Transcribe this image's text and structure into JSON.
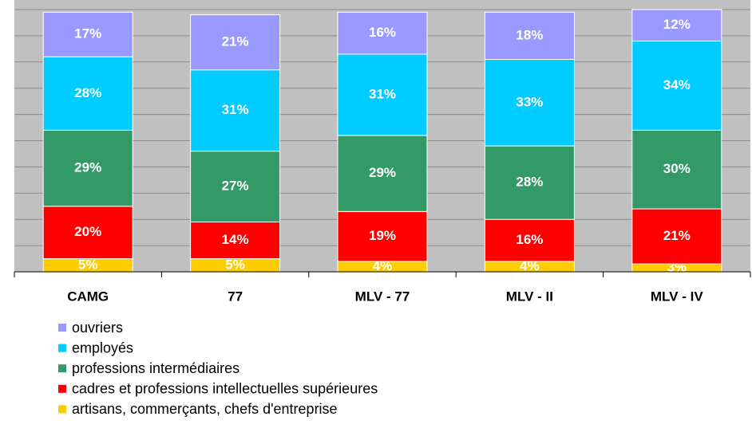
{
  "chart_data": {
    "type": "stacked_bar",
    "categories": [
      "CAMG",
      "77",
      "MLV - 77",
      "MLV - II",
      "MLV - IV"
    ],
    "ylim": [
      0,
      100
    ],
    "yticks": [
      0,
      10,
      20,
      30,
      40,
      50,
      60,
      70,
      80,
      90,
      100
    ],
    "grid": true,
    "series": [
      {
        "name": "ouvriers",
        "color": "#9999ff",
        "values": [
          17,
          21,
          16,
          18,
          12
        ],
        "value_labels": [
          "17%",
          "21%",
          "16%",
          "18%",
          "12%"
        ]
      },
      {
        "name": "employés",
        "color": "#00ccff",
        "values": [
          28,
          31,
          31,
          33,
          34
        ],
        "value_labels": [
          "28%",
          "31%",
          "31%",
          "33%",
          "34%"
        ]
      },
      {
        "name": "professions intermédiaires",
        "color": "#339966",
        "values": [
          29,
          27,
          29,
          28,
          30
        ],
        "value_labels": [
          "29%",
          "27%",
          "29%",
          "28%",
          "30%"
        ]
      },
      {
        "name": "cadres et professions intellectuelles supérieures",
        "color": "#ff0000",
        "values": [
          20,
          14,
          19,
          16,
          21
        ],
        "value_labels": [
          "20%",
          "14%",
          "19%",
          "16%",
          "21%"
        ]
      },
      {
        "name": "artisans, commerçants, chefs d'entreprise",
        "color": "#ffcc00",
        "values": [
          5,
          5,
          4,
          4,
          3
        ],
        "value_labels": [
          "5%",
          "5%",
          "4%",
          "4%",
          "3%"
        ]
      }
    ]
  }
}
